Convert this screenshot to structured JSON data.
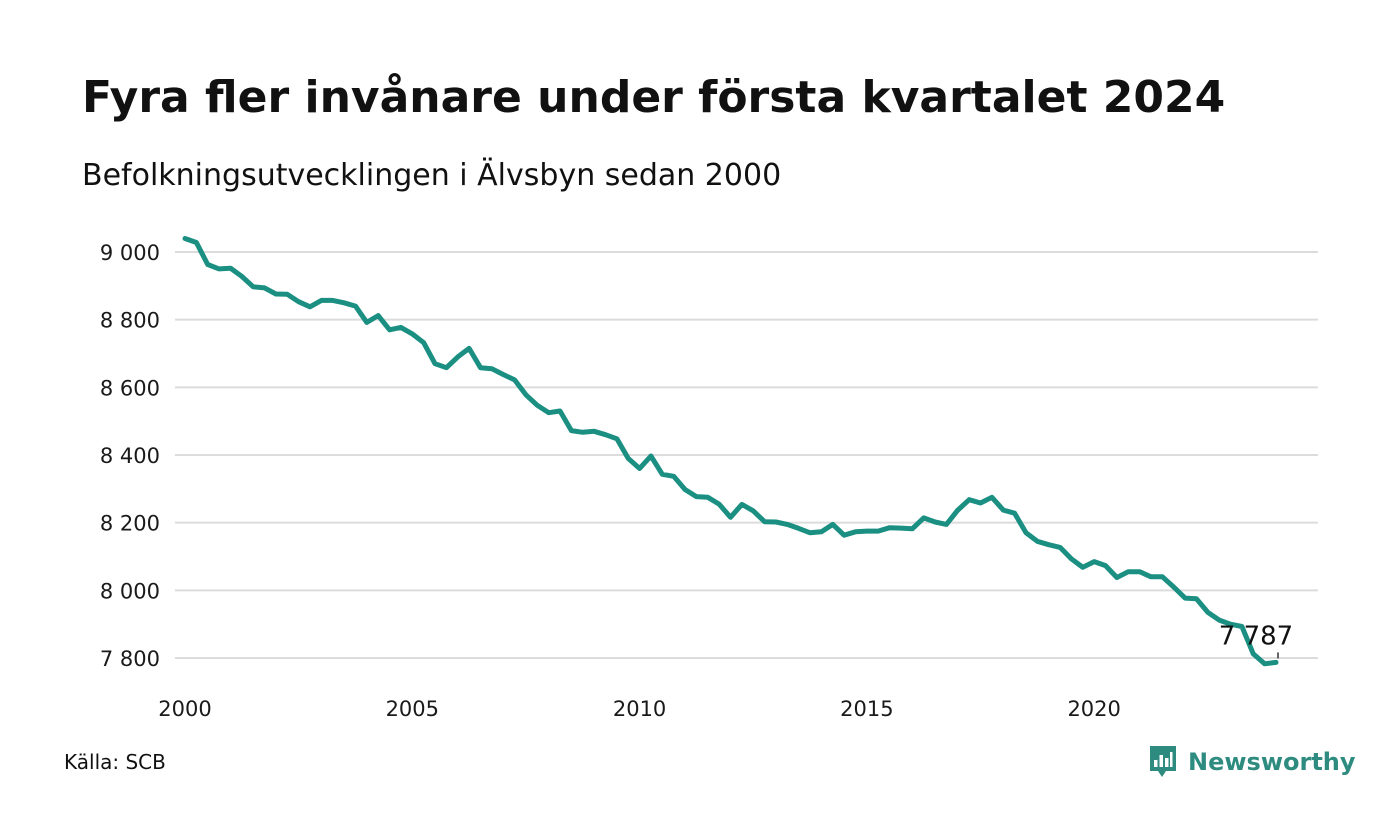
{
  "header": {
    "title": "Fyra fler invånare under första kvartalet 2024",
    "subtitle": "Befolkningsutvecklingen i Älvsbyn sedan 2000"
  },
  "footer": {
    "source": "Källa: SCB",
    "brand": "Newsworthy",
    "brand_icon": "newsworthy-logo-icon"
  },
  "colors": {
    "line": "#1a8f82",
    "grid": "#dcdcdc",
    "brand": "#2e8b7f"
  },
  "chart_data": {
    "type": "line",
    "title": "Fyra fler invånare under första kvartalet 2024",
    "subtitle": "Befolkningsutvecklingen i Älvsbyn sedan 2000",
    "xlabel": "",
    "ylabel": "",
    "xlim": [
      2000,
      2024.25
    ],
    "ylim": [
      7770,
      9040
    ],
    "x_ticks": [
      2000,
      2005,
      2010,
      2015,
      2020
    ],
    "x_tick_labels": [
      "2000",
      "2005",
      "2010",
      "2015",
      "2020"
    ],
    "y_ticks": [
      7800,
      8000,
      8200,
      8400,
      8600,
      8800,
      9000
    ],
    "y_tick_labels": [
      "7 800",
      "8 000",
      "8 200",
      "8 400",
      "8 600",
      "8 800",
      "9 000"
    ],
    "grid": true,
    "legend": "none",
    "end_label": "7 787",
    "series": [
      {
        "x": [
          2000.0,
          2000.25,
          2000.5,
          2000.75,
          2001.0,
          2001.25,
          2001.5,
          2001.75,
          2002.0,
          2002.25,
          2002.5,
          2002.75,
          2003.0,
          2003.25,
          2003.5,
          2003.75,
          2004.0,
          2004.25,
          2004.5,
          2004.75,
          2005.0,
          2005.25,
          2005.5,
          2005.75,
          2006.0,
          2006.25,
          2006.5,
          2006.75,
          2007.0,
          2007.25,
          2007.5,
          2007.75,
          2008.0,
          2008.25,
          2008.5,
          2008.75,
          2009.0,
          2009.25,
          2009.5,
          2009.75,
          2010.0,
          2010.25,
          2010.5,
          2010.75,
          2011.0,
          2011.25,
          2011.5,
          2011.75,
          2012.0,
          2012.25,
          2012.5,
          2012.75,
          2013.0,
          2013.25,
          2013.5,
          2013.75,
          2014.0,
          2014.25,
          2014.5,
          2014.75,
          2015.0,
          2015.25,
          2015.5,
          2015.75,
          2016.0,
          2016.25,
          2016.5,
          2016.75,
          2017.0,
          2017.25,
          2017.5,
          2017.75,
          2018.0,
          2018.25,
          2018.5,
          2018.75,
          2019.0,
          2019.25,
          2019.5,
          2019.75,
          2020.0,
          2020.25,
          2020.5,
          2020.75,
          2021.0,
          2021.25,
          2021.5,
          2021.75,
          2022.0,
          2022.25,
          2022.5,
          2022.75,
          2023.0,
          2023.25,
          2023.5,
          2023.75,
          2024.0
        ],
        "values": [
          9040,
          9028,
          8963,
          8950,
          8952,
          8928,
          8897,
          8894,
          8876,
          8875,
          8853,
          8838,
          8857,
          8857,
          8850,
          8840,
          8792,
          8812,
          8770,
          8777,
          8758,
          8732,
          8670,
          8658,
          8690,
          8715,
          8658,
          8655,
          8638,
          8622,
          8578,
          8547,
          8525,
          8530,
          8472,
          8467,
          8470,
          8460,
          8448,
          8390,
          8360,
          8397,
          8343,
          8337,
          8298,
          8277,
          8275,
          8255,
          8216,
          8254,
          8235,
          8203,
          8202,
          8195,
          8183,
          8170,
          8173,
          8195,
          8163,
          8173,
          8175,
          8175,
          8185,
          8184,
          8182,
          8214,
          8202,
          8195,
          8237,
          8268,
          8258,
          8275,
          8237,
          8228,
          8170,
          8145,
          8135,
          8127,
          8093,
          8068,
          8085,
          8073,
          8038,
          8055,
          8055,
          8040,
          8040,
          8010,
          7977,
          7975,
          7935,
          7912,
          7900,
          7893,
          7812,
          7783,
          7787
        ]
      }
    ]
  }
}
